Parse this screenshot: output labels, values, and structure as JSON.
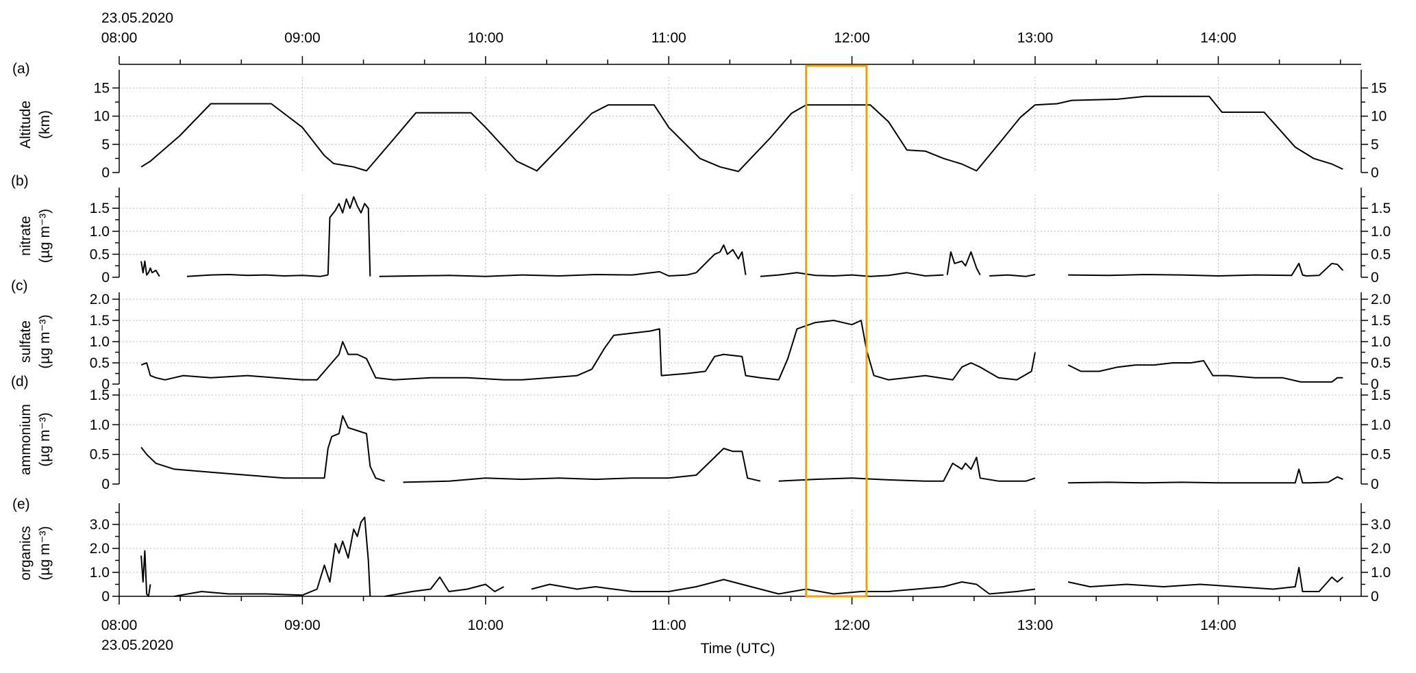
{
  "figure": {
    "date_top": "23.05.2020",
    "date_bottom": "23.05.2020",
    "xlabel": "Time (UTC)",
    "x_ticks": [
      "08:00",
      "09:00",
      "10:00",
      "11:00",
      "12:00",
      "13:00",
      "14:00"
    ],
    "x_tick_hours": [
      8,
      9,
      10,
      11,
      12,
      13,
      14
    ],
    "highlight_color": "#f0a000",
    "line_color": "#000000",
    "grid_color": "#bbbbbb"
  },
  "chart_data": [
    {
      "panel": "(a)",
      "type": "line",
      "ylabel": "Altitude",
      "yunit": "(km)",
      "ylim": [
        0,
        17
      ],
      "yticks": [
        0,
        5,
        10,
        15
      ],
      "ytick_labels": [
        "0",
        "5",
        "10",
        "15"
      ],
      "grid": true,
      "x_hours": [
        8.12,
        8.17,
        8.33,
        8.5,
        8.58,
        8.83,
        9.0,
        9.12,
        9.17,
        9.28,
        9.35,
        9.5,
        9.62,
        9.75,
        9.92,
        10.0,
        10.17,
        10.28,
        10.42,
        10.58,
        10.67,
        10.83,
        10.92,
        11.0,
        11.17,
        11.28,
        11.38,
        11.55,
        11.67,
        11.75,
        12.1,
        12.2,
        12.3,
        12.4,
        12.5,
        12.6,
        12.68,
        12.8,
        12.92,
        13.0,
        13.12,
        13.2,
        13.45,
        13.6,
        13.95,
        14.02,
        14.25,
        14.42,
        14.52,
        14.62,
        14.68
      ],
      "values": [
        1.0,
        2.0,
        6.5,
        12.2,
        12.2,
        12.2,
        8.0,
        3.0,
        1.6,
        1.0,
        0.3,
        6.0,
        10.6,
        10.6,
        10.6,
        8.0,
        2.0,
        0.3,
        5.0,
        10.5,
        12.0,
        12.0,
        12.0,
        8.0,
        2.5,
        1.0,
        0.2,
        6.0,
        10.5,
        12.0,
        12.0,
        9.0,
        4.0,
        3.8,
        2.5,
        1.5,
        0.3,
        5.0,
        9.8,
        12.0,
        12.2,
        12.8,
        13.0,
        13.5,
        13.5,
        10.7,
        10.7,
        4.5,
        2.5,
        1.5,
        0.6
      ]
    },
    {
      "panel": "(b)",
      "type": "line",
      "ylabel": "nitrate",
      "yunit": "(µg m⁻³)",
      "ylim": [
        0,
        1.8
      ],
      "yticks": [
        0,
        0.5,
        1.0,
        1.5
      ],
      "ytick_labels": [
        "0",
        "0.5",
        "1.0",
        "1.5"
      ],
      "grid": true,
      "segments": [
        {
          "x_hours": [
            8.12,
            8.13,
            8.14,
            8.15,
            8.16,
            8.17,
            8.18,
            8.2,
            8.22
          ],
          "values": [
            0.35,
            0.1,
            0.35,
            0.05,
            0.1,
            0.2,
            0.1,
            0.15,
            0.02
          ]
        },
        {
          "x_hours": [
            8.37,
            8.5,
            8.6,
            8.7,
            8.8,
            8.9,
            9.0,
            9.1,
            9.14
          ],
          "values": [
            0.02,
            0.05,
            0.06,
            0.04,
            0.05,
            0.03,
            0.04,
            0.02,
            0.05
          ]
        },
        {
          "x_hours": [
            9.14,
            9.15,
            9.18,
            9.2,
            9.22,
            9.24,
            9.26,
            9.28,
            9.3,
            9.32,
            9.34,
            9.36,
            9.37
          ],
          "values": [
            0.05,
            1.3,
            1.45,
            1.6,
            1.4,
            1.7,
            1.5,
            1.75,
            1.55,
            1.4,
            1.6,
            1.5,
            0.02
          ]
        },
        {
          "x_hours": [
            9.42,
            9.6,
            9.8,
            10.0,
            10.2,
            10.4,
            10.6,
            10.8,
            10.95,
            11.0,
            11.1,
            11.15
          ],
          "values": [
            0.02,
            0.03,
            0.04,
            0.02,
            0.05,
            0.03,
            0.06,
            0.05,
            0.12,
            0.03,
            0.05,
            0.1
          ]
        },
        {
          "x_hours": [
            11.15,
            11.2,
            11.25,
            11.28,
            11.3,
            11.32,
            11.35,
            11.38,
            11.4,
            11.42
          ],
          "values": [
            0.1,
            0.3,
            0.5,
            0.55,
            0.7,
            0.5,
            0.6,
            0.4,
            0.55,
            0.05
          ]
        },
        {
          "x_hours": [
            11.5,
            11.6,
            11.7,
            11.8,
            11.9,
            12.0,
            12.1,
            12.2,
            12.3,
            12.4,
            12.5
          ],
          "values": [
            0.02,
            0.05,
            0.1,
            0.04,
            0.03,
            0.05,
            0.02,
            0.04,
            0.1,
            0.03,
            0.05
          ]
        },
        {
          "x_hours": [
            12.52,
            12.54,
            12.56,
            12.6,
            12.62,
            12.65,
            12.68,
            12.7
          ],
          "values": [
            0.05,
            0.55,
            0.3,
            0.35,
            0.25,
            0.55,
            0.2,
            0.05
          ]
        },
        {
          "x_hours": [
            12.75,
            12.85,
            12.95,
            13.0
          ],
          "values": [
            0.03,
            0.05,
            0.02,
            0.06
          ]
        },
        {
          "x_hours": [
            13.18,
            13.4,
            13.6,
            13.8,
            14.0,
            14.2,
            14.4,
            14.44,
            14.46,
            14.48,
            14.55,
            14.62,
            14.65,
            14.68
          ],
          "values": [
            0.05,
            0.04,
            0.06,
            0.05,
            0.03,
            0.05,
            0.04,
            0.3,
            0.05,
            0.03,
            0.04,
            0.3,
            0.28,
            0.15
          ]
        }
      ]
    },
    {
      "panel": "(c)",
      "type": "line",
      "ylabel": "sulfate",
      "yunit": "(µg m⁻³)",
      "ylim": [
        0,
        2.0
      ],
      "yticks": [
        0,
        0.5,
        1.0,
        1.5,
        2.0
      ],
      "ytick_labels": [
        "0",
        "0.5",
        "1.0",
        "1.5",
        "2.0"
      ],
      "grid": true,
      "segments": [
        {
          "x_hours": [
            8.12,
            8.15,
            8.17,
            8.2,
            8.25,
            8.35,
            8.5,
            8.7,
            8.85,
            9.0,
            9.08,
            9.15,
            9.2,
            9.22,
            9.25,
            9.3,
            9.35,
            9.4,
            9.5,
            9.7,
            9.9,
            10.1,
            10.2,
            10.35,
            10.5,
            10.58,
            10.65,
            10.7,
            10.8,
            10.9,
            10.95,
            10.96,
            11.1,
            11.2,
            11.25,
            11.3,
            11.4,
            11.42,
            11.5,
            11.6,
            11.65,
            11.7,
            11.8,
            11.9,
            12.0,
            12.05,
            12.08,
            12.12,
            12.2,
            12.3,
            12.4,
            12.55,
            12.6,
            12.65,
            12.7,
            12.8,
            12.9,
            12.98,
            13.0
          ],
          "values": [
            0.45,
            0.5,
            0.2,
            0.15,
            0.1,
            0.2,
            0.15,
            0.2,
            0.15,
            0.1,
            0.1,
            0.45,
            0.7,
            1.0,
            0.7,
            0.7,
            0.6,
            0.15,
            0.1,
            0.15,
            0.15,
            0.1,
            0.1,
            0.15,
            0.2,
            0.35,
            0.85,
            1.15,
            1.2,
            1.25,
            1.3,
            0.2,
            0.25,
            0.3,
            0.65,
            0.7,
            0.65,
            0.2,
            0.15,
            0.1,
            0.6,
            1.3,
            1.45,
            1.5,
            1.4,
            1.5,
            0.8,
            0.2,
            0.1,
            0.15,
            0.2,
            0.1,
            0.4,
            0.5,
            0.4,
            0.15,
            0.1,
            0.3,
            0.75
          ]
        },
        {
          "x_hours": [
            13.18,
            13.25,
            13.35,
            13.45,
            13.55,
            13.65,
            13.75,
            13.85,
            13.92,
            13.97,
            14.05,
            14.2,
            14.35,
            14.45,
            14.55,
            14.62,
            14.65,
            14.68
          ],
          "values": [
            0.45,
            0.3,
            0.3,
            0.4,
            0.45,
            0.45,
            0.5,
            0.5,
            0.55,
            0.2,
            0.2,
            0.15,
            0.15,
            0.05,
            0.05,
            0.05,
            0.15,
            0.15
          ]
        }
      ]
    },
    {
      "panel": "(d)",
      "type": "line",
      "ylabel": "ammonium",
      "yunit": "(µg m⁻³)",
      "ylim": [
        0,
        1.5
      ],
      "yticks": [
        0,
        0.5,
        1.0,
        1.5
      ],
      "ytick_labels": [
        "0",
        "0.5",
        "1.0",
        "1.5"
      ],
      "grid": true,
      "segments": [
        {
          "x_hours": [
            8.12,
            8.15,
            8.2,
            8.3,
            8.5,
            8.7,
            8.9,
            9.05,
            9.12,
            9.14,
            9.16,
            9.2,
            9.22,
            9.25,
            9.3,
            9.35,
            9.37,
            9.4,
            9.45
          ],
          "values": [
            0.62,
            0.5,
            0.35,
            0.25,
            0.2,
            0.15,
            0.1,
            0.1,
            0.1,
            0.6,
            0.8,
            0.85,
            1.15,
            0.95,
            0.9,
            0.85,
            0.3,
            0.1,
            0.05
          ]
        },
        {
          "x_hours": [
            9.55,
            9.8,
            10.0,
            10.2,
            10.4,
            10.6,
            10.8,
            11.0,
            11.15,
            11.25,
            11.3,
            11.35,
            11.4,
            11.43,
            11.5
          ],
          "values": [
            0.03,
            0.05,
            0.1,
            0.08,
            0.1,
            0.08,
            0.1,
            0.1,
            0.15,
            0.45,
            0.6,
            0.55,
            0.55,
            0.1,
            0.05
          ]
        },
        {
          "x_hours": [
            11.6,
            11.8,
            12.0,
            12.2,
            12.4,
            12.5,
            12.55,
            12.6,
            12.62,
            12.65,
            12.68,
            12.7,
            12.8,
            12.95,
            13.0
          ],
          "values": [
            0.05,
            0.08,
            0.1,
            0.07,
            0.05,
            0.05,
            0.35,
            0.25,
            0.35,
            0.25,
            0.45,
            0.1,
            0.05,
            0.05,
            0.1
          ]
        },
        {
          "x_hours": [
            13.18,
            13.4,
            13.6,
            13.8,
            14.0,
            14.2,
            14.42,
            14.44,
            14.46,
            14.5,
            14.6,
            14.65,
            14.68
          ],
          "values": [
            0.02,
            0.03,
            0.02,
            0.03,
            0.02,
            0.02,
            0.02,
            0.25,
            0.02,
            0.02,
            0.03,
            0.12,
            0.08
          ]
        }
      ]
    },
    {
      "panel": "(e)",
      "type": "line",
      "ylabel": "organics",
      "yunit": "(µg m⁻³)",
      "ylim": [
        0,
        3.6
      ],
      "yticks": [
        0,
        1.0,
        2.0,
        3.0
      ],
      "ytick_labels": [
        "0",
        "1.0",
        "2.0",
        "3.0"
      ],
      "grid": true,
      "segments": [
        {
          "x_hours": [
            8.12,
            8.13,
            8.14,
            8.15,
            8.16,
            8.17
          ],
          "values": [
            1.7,
            0.6,
            1.9,
            0.1,
            0.0,
            0.5
          ]
        },
        {
          "x_hours": [
            8.3,
            8.45,
            8.6,
            8.8,
            9.0,
            9.08,
            9.12,
            9.15,
            9.18,
            9.2,
            9.22,
            9.25,
            9.28,
            9.3,
            9.32,
            9.34,
            9.36,
            9.37
          ],
          "values": [
            0.0,
            0.2,
            0.1,
            0.1,
            0.05,
            0.3,
            1.3,
            0.6,
            2.2,
            1.8,
            2.3,
            1.6,
            2.8,
            2.5,
            3.1,
            3.3,
            1.5,
            0.0
          ]
        },
        {
          "x_hours": [
            9.45,
            9.6,
            9.7,
            9.75,
            9.8,
            9.9,
            10.0,
            10.05,
            10.1
          ],
          "values": [
            0.0,
            0.2,
            0.3,
            0.8,
            0.2,
            0.3,
            0.5,
            0.2,
            0.4
          ]
        },
        {
          "x_hours": [
            10.25,
            10.35,
            10.5,
            10.6,
            10.8,
            11.0,
            11.15,
            11.3,
            11.45,
            11.6,
            11.75,
            11.9,
            12.05,
            12.2,
            12.35,
            12.5,
            12.6,
            12.68,
            12.75,
            12.9,
            13.0
          ],
          "values": [
            0.3,
            0.5,
            0.3,
            0.4,
            0.2,
            0.2,
            0.4,
            0.7,
            0.4,
            0.1,
            0.3,
            0.1,
            0.2,
            0.2,
            0.3,
            0.4,
            0.6,
            0.5,
            0.1,
            0.2,
            0.3
          ]
        },
        {
          "x_hours": [
            13.18,
            13.3,
            13.5,
            13.7,
            13.9,
            14.1,
            14.3,
            14.42,
            14.44,
            14.46,
            14.55,
            14.62,
            14.65,
            14.68
          ],
          "values": [
            0.6,
            0.4,
            0.5,
            0.4,
            0.5,
            0.4,
            0.3,
            0.4,
            1.2,
            0.2,
            0.2,
            0.8,
            0.6,
            0.8
          ]
        }
      ]
    }
  ],
  "highlight": {
    "x_start_hour": 11.75,
    "x_end_hour": 12.08
  }
}
